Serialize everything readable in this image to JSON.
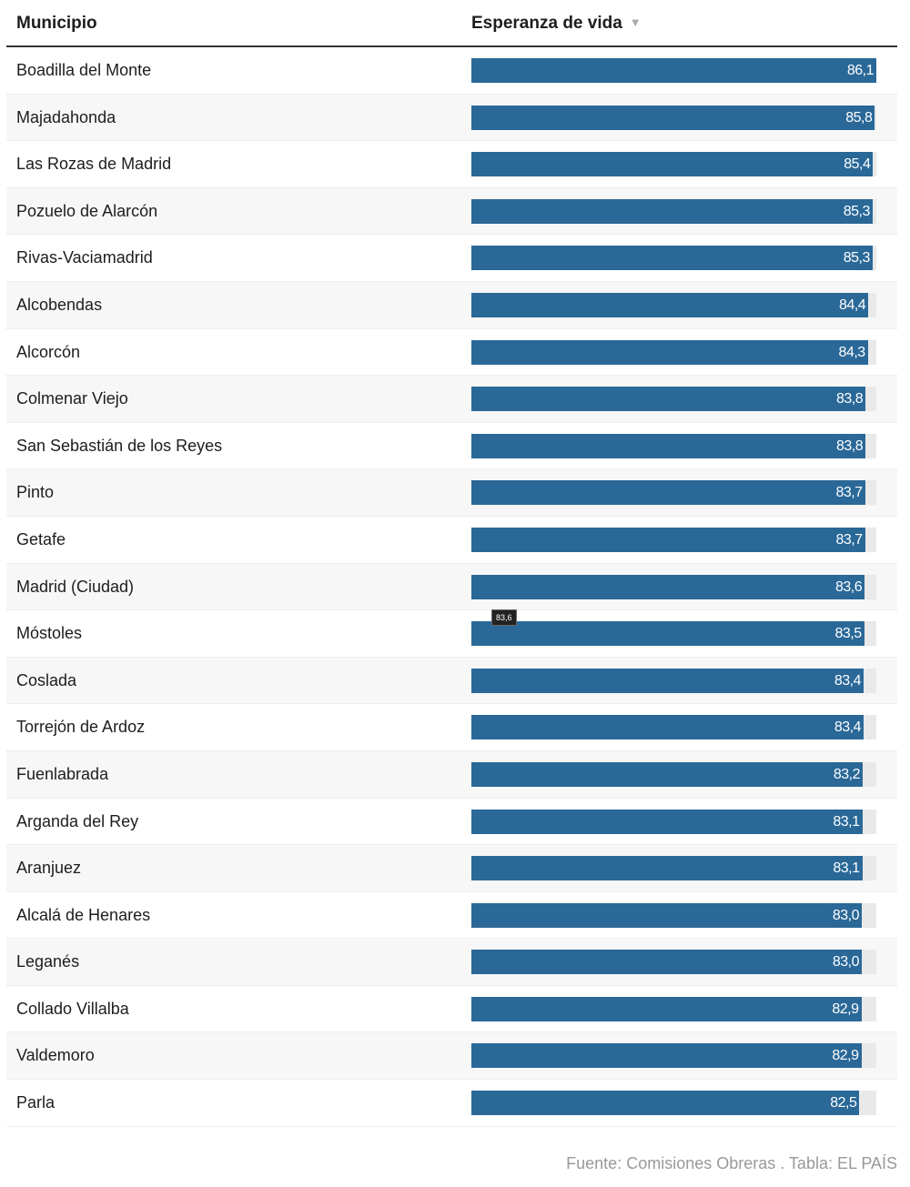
{
  "header": {
    "municipio": "Municipio",
    "esperanza": "Esperanza de vida",
    "sort_icon": "triangle-down-icon"
  },
  "chart_data": {
    "type": "bar",
    "orientation": "horizontal",
    "categories": [
      "Boadilla del Monte",
      "Majadahonda",
      "Las Rozas de Madrid",
      "Pozuelo de Alarcón",
      "Rivas-Vaciamadrid",
      "Alcobendas",
      "Alcorcón",
      "Colmenar Viejo",
      "San Sebastián de los Reyes",
      "Pinto",
      "Getafe",
      "Madrid (Ciudad)",
      "Móstoles",
      "Coslada",
      "Torrejón de Ardoz",
      "Fuenlabrada",
      "Arganda del Rey",
      "Aranjuez",
      "Alcalá de Henares",
      "Leganés",
      "Collado Villalba",
      "Valdemoro",
      "Parla"
    ],
    "values": [
      86.1,
      85.8,
      85.4,
      85.3,
      85.3,
      84.4,
      84.3,
      83.8,
      83.8,
      83.7,
      83.7,
      83.6,
      83.5,
      83.4,
      83.4,
      83.2,
      83.1,
      83.1,
      83.0,
      83.0,
      82.9,
      82.9,
      82.5
    ],
    "labels": [
      "86,1",
      "85,8",
      "85,4",
      "85,3",
      "85,3",
      "84,4",
      "84,3",
      "83,8",
      "83,8",
      "83,7",
      "83,7",
      "83,6",
      "83,5",
      "83,4",
      "83,4",
      "83,2",
      "83,1",
      "83,1",
      "83,0",
      "83,0",
      "82,9",
      "82,9",
      "82,5"
    ],
    "xlim": [
      0,
      86.1
    ],
    "bar_color": "#2a6898",
    "track_color": "#e9e9e9"
  },
  "tooltip": "83,6",
  "footer": "Fuente: Comisiones Obreras . Tabla: EL PAÍS"
}
